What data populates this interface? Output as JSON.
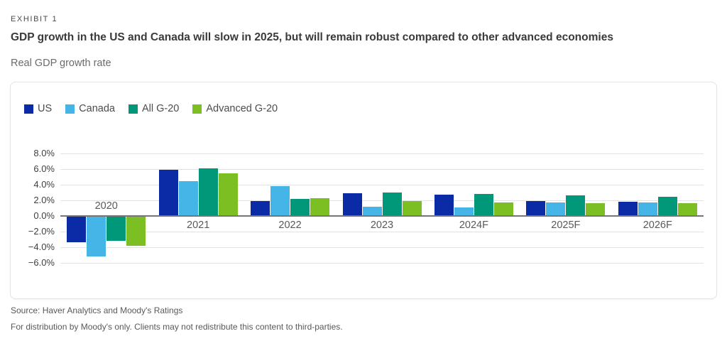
{
  "header": {
    "eyebrow": "EXHIBIT 1",
    "title": "GDP growth in the US and Canada will slow in 2025, but will remain robust compared to other advanced economies",
    "subtitle": "Real GDP growth rate"
  },
  "chart_data": {
    "type": "bar",
    "title": "Real GDP growth rate",
    "xlabel": "",
    "ylabel": "Real GDP growth rate (%)",
    "categories": [
      "2020",
      "2021",
      "2022",
      "2023",
      "2024F",
      "2025F",
      "2026F"
    ],
    "series": [
      {
        "name": "US",
        "color": "#0a2aa6",
        "values": [
          -3.4,
          5.9,
          1.9,
          2.9,
          2.7,
          1.9,
          1.8
        ]
      },
      {
        "name": "Canada",
        "color": "#45b5e8",
        "values": [
          -5.2,
          4.5,
          3.8,
          1.2,
          1.1,
          1.7,
          1.7
        ]
      },
      {
        "name": "All G-20",
        "color": "#009878",
        "values": [
          -3.2,
          6.1,
          2.2,
          3.0,
          2.8,
          2.6,
          2.5
        ]
      },
      {
        "name": "Advanced G-20",
        "color": "#7bbf22",
        "values": [
          -3.8,
          5.5,
          2.3,
          1.9,
          1.7,
          1.6,
          1.6
        ]
      }
    ],
    "y_ticks": [
      {
        "label": "8.0%",
        "value": 8
      },
      {
        "label": "6.0%",
        "value": 6
      },
      {
        "label": "4.0%",
        "value": 4
      },
      {
        "label": "2.0%",
        "value": 2
      },
      {
        "label": "0.0%",
        "value": 0
      },
      {
        "label": "−2.0%",
        "value": -2
      },
      {
        "label": "−4.0%",
        "value": -4
      },
      {
        "label": "−6.0%",
        "value": -6
      }
    ],
    "ylim": [
      -6,
      8
    ],
    "grid": true,
    "legend_position": "top-left"
  },
  "footer": {
    "source": "Source: Haver Analytics and Moody's Ratings",
    "distribution": "For distribution by Moody's only. Clients may not redistribute this content to third-parties."
  }
}
